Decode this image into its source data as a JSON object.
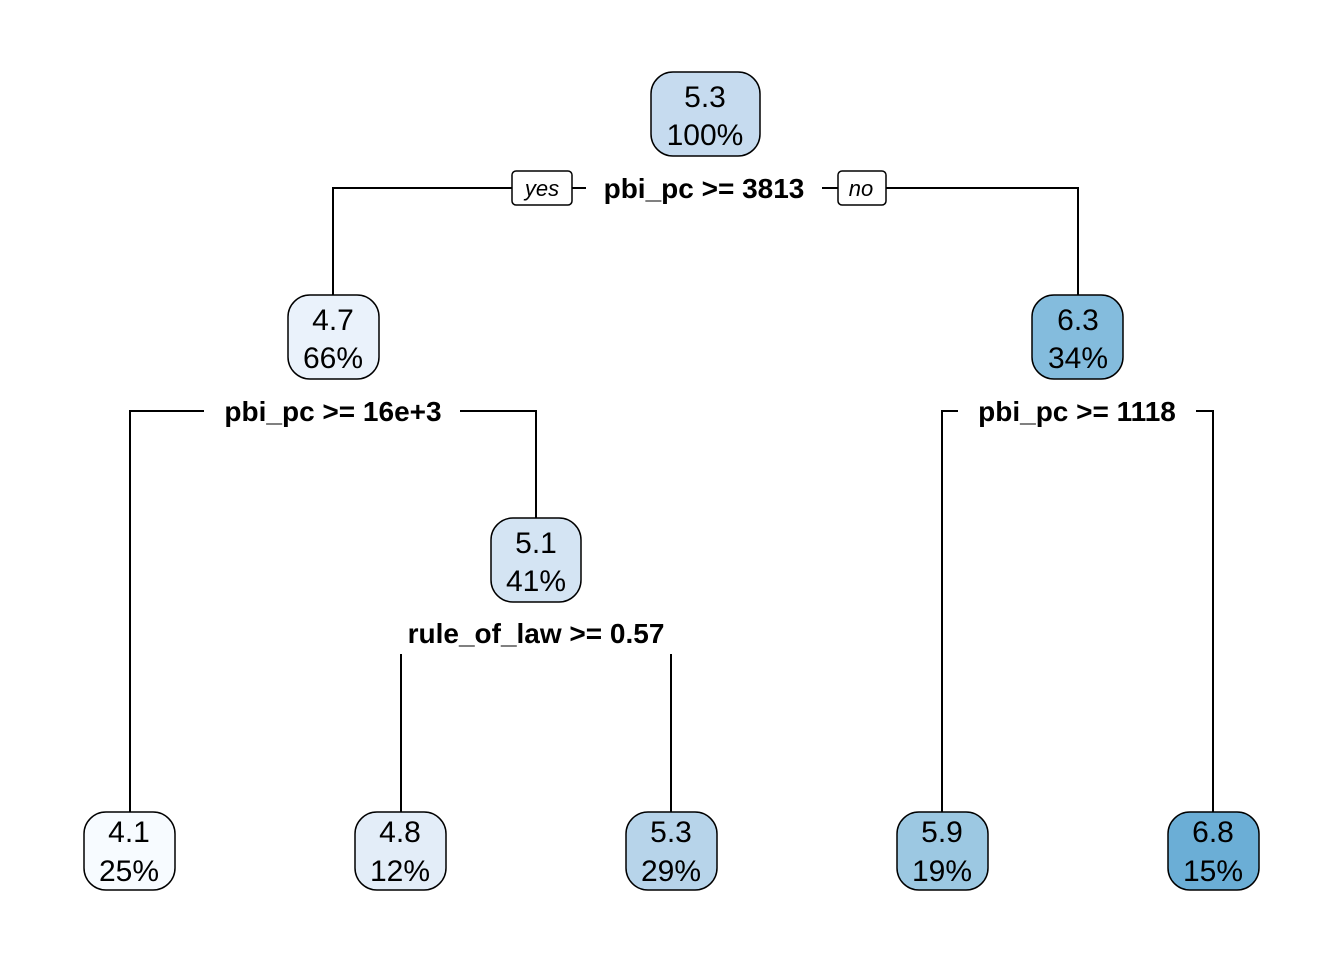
{
  "tree": {
    "color_scale": {
      "low": "#f7fbff",
      "high": "#6baed6"
    },
    "root": {
      "value": "5.3",
      "percent": "100%",
      "split": "pbi_pc >= 3813",
      "yes_label": "yes",
      "no_label": "no"
    },
    "left": {
      "value": "4.7",
      "percent": "66%",
      "split": "pbi_pc >= 16e+3"
    },
    "right": {
      "value": "6.3",
      "percent": "34%",
      "split": "pbi_pc >= 1118"
    },
    "left_right": {
      "value": "5.1",
      "percent": "41%",
      "split": "rule_of_law >= 0.57"
    },
    "leaves": [
      {
        "value": "4.1",
        "percent": "25%"
      },
      {
        "value": "4.8",
        "percent": "12%"
      },
      {
        "value": "5.3",
        "percent": "29%"
      },
      {
        "value": "5.9",
        "percent": "19%"
      },
      {
        "value": "6.8",
        "percent": "15%"
      }
    ]
  }
}
